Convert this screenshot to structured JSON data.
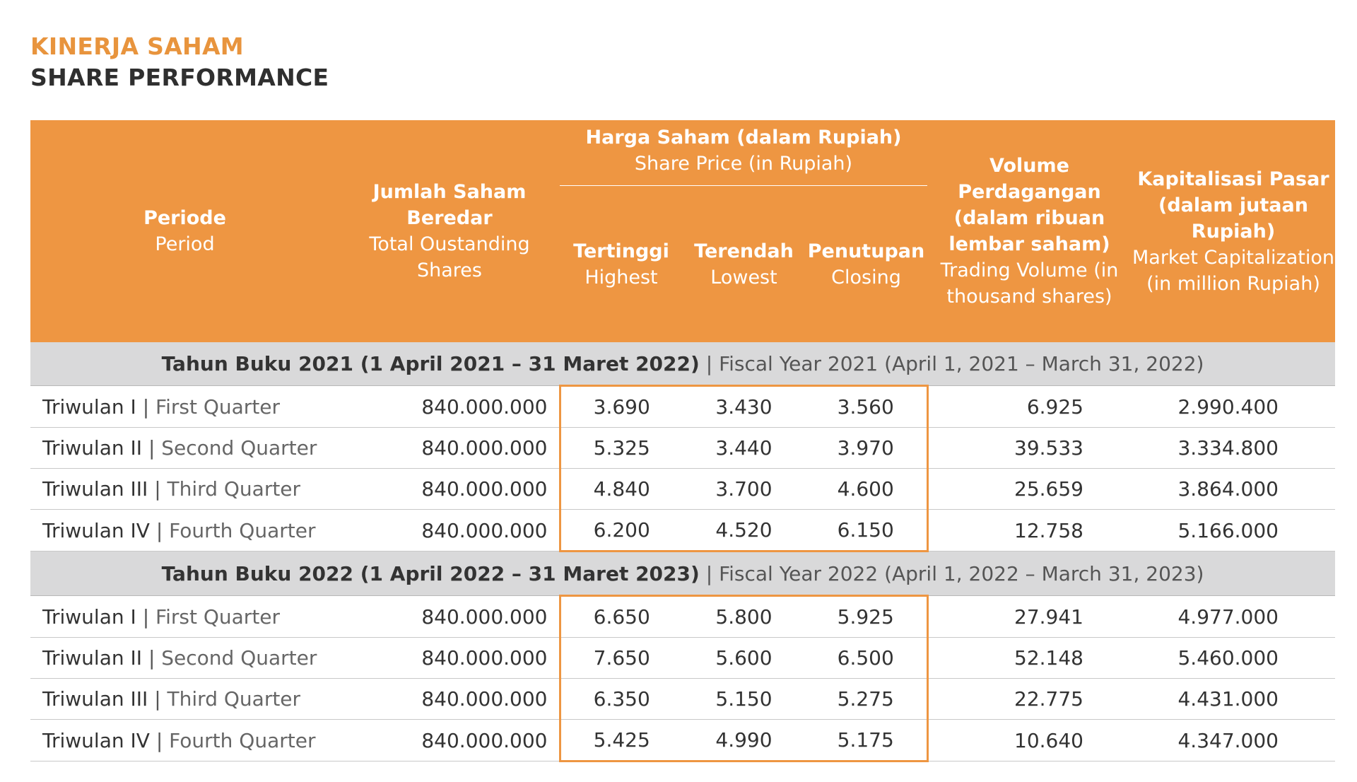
{
  "title": {
    "id": "KINERJA SAHAM",
    "en": "SHARE PERFORMANCE"
  },
  "colors": {
    "accent": "#ee9642",
    "title_orange": "#e8943d",
    "band_gray": "#d9d9da"
  },
  "headers": {
    "period": {
      "id": "Periode",
      "en": "Period"
    },
    "shares": {
      "id": "Jumlah Saham Beredar",
      "en": "Total Oustanding Shares"
    },
    "price_group": {
      "id": "Harga Saham (dalam Rupiah)",
      "en": "Share Price (in Rupiah)"
    },
    "high": {
      "id": "Tertinggi",
      "en": "Highest"
    },
    "low": {
      "id": "Terendah",
      "en": "Lowest"
    },
    "close": {
      "id": "Penutupan",
      "en": "Closing"
    },
    "volume": {
      "id": "Volume Perdagangan (dalam ribuan lembar saham)",
      "en": "Trading Volume (in thousand shares)"
    },
    "cap": {
      "id": "Kapitalisasi Pasar (dalam jutaan Rupiah)",
      "en": "Market Capitalization (in million Rupiah)"
    }
  },
  "fiscal_years": [
    {
      "label_id": "Tahun Buku 2021 (1 April 2021 – 31 Maret 2022)",
      "separator": "|",
      "label_en": "Fiscal Year 2021 (April 1, 2021 – March 31, 2022)",
      "rows": [
        {
          "period_id": "Triwulan I",
          "period_en": "First Quarter",
          "shares": "840.000.000",
          "high": "3.690",
          "low": "3.430",
          "close": "3.560",
          "volume": "6.925",
          "cap": "2.990.400"
        },
        {
          "period_id": "Triwulan II",
          "period_en": "Second Quarter",
          "shares": "840.000.000",
          "high": "5.325",
          "low": "3.440",
          "close": "3.970",
          "volume": "39.533",
          "cap": "3.334.800"
        },
        {
          "period_id": "Triwulan III",
          "period_en": "Third Quarter",
          "shares": "840.000.000",
          "high": "4.840",
          "low": "3.700",
          "close": "4.600",
          "volume": "25.659",
          "cap": "3.864.000"
        },
        {
          "period_id": "Triwulan IV",
          "period_en": "Fourth Quarter",
          "shares": "840.000.000",
          "high": "6.200",
          "low": "4.520",
          "close": "6.150",
          "volume": "12.758",
          "cap": "5.166.000"
        }
      ]
    },
    {
      "label_id": "Tahun Buku 2022 (1 April 2022 – 31 Maret 2023)",
      "separator": "|",
      "label_en": "Fiscal Year 2022 (April 1, 2022 – March 31, 2023)",
      "rows": [
        {
          "period_id": "Triwulan I",
          "period_en": "First Quarter",
          "shares": "840.000.000",
          "high": "6.650",
          "low": "5.800",
          "close": "5.925",
          "volume": "27.941",
          "cap": "4.977.000"
        },
        {
          "period_id": "Triwulan II",
          "period_en": "Second Quarter",
          "shares": "840.000.000",
          "high": "7.650",
          "low": "5.600",
          "close": "6.500",
          "volume": "52.148",
          "cap": "5.460.000"
        },
        {
          "period_id": "Triwulan III",
          "period_en": "Third Quarter",
          "shares": "840.000.000",
          "high": "6.350",
          "low": "5.150",
          "close": "5.275",
          "volume": "22.775",
          "cap": "4.431.000"
        },
        {
          "period_id": "Triwulan IV",
          "period_en": "Fourth Quarter",
          "shares": "840.000.000",
          "high": "5.425",
          "low": "4.990",
          "close": "5.175",
          "volume": "10.640",
          "cap": "4.347.000"
        }
      ]
    }
  ]
}
